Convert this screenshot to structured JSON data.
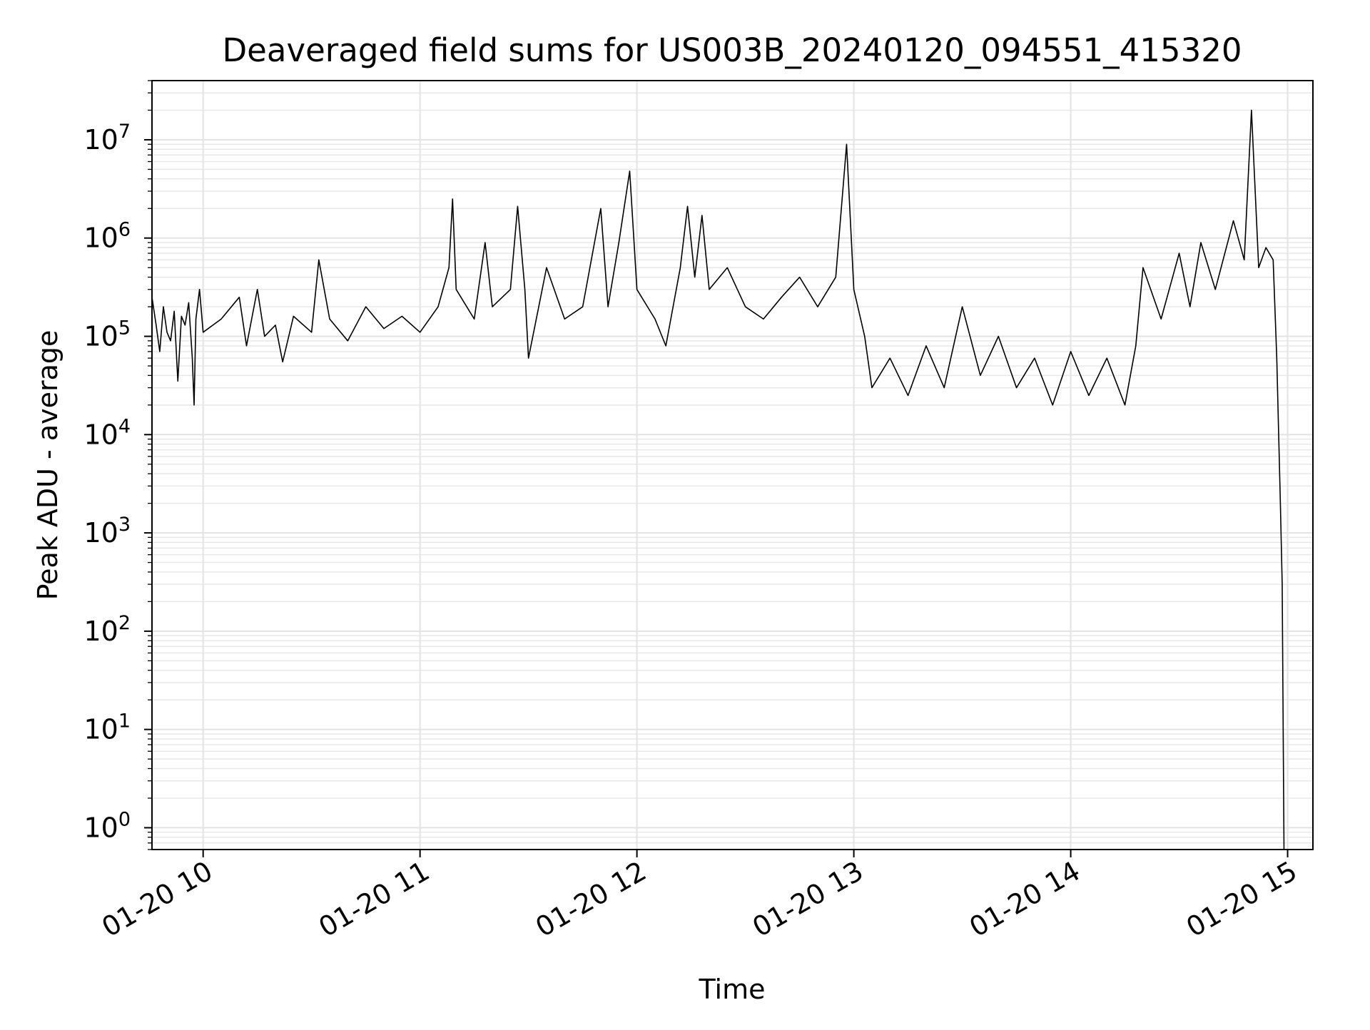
{
  "chart_data": {
    "type": "line",
    "title": "Deaveraged field sums for US003B_20240120_094551_415320",
    "xlabel": "Time",
    "ylabel": "Peak ADU - average",
    "yscale": "log",
    "ylim": [
      0.6,
      40000000
    ],
    "xlim": [
      "2024-01-20 09:45:51",
      "2024-01-20 15:07:00"
    ],
    "grid": true,
    "x_ticks": [
      {
        "value": "2024-01-20 10:00",
        "label": "01-20 10"
      },
      {
        "value": "2024-01-20 11:00",
        "label": "01-20 11"
      },
      {
        "value": "2024-01-20 12:00",
        "label": "01-20 12"
      },
      {
        "value": "2024-01-20 13:00",
        "label": "01-20 13"
      },
      {
        "value": "2024-01-20 14:00",
        "label": "01-20 14"
      },
      {
        "value": "2024-01-20 15:00",
        "label": "01-20 15"
      }
    ],
    "y_ticks": [
      {
        "value": 1,
        "base": "10",
        "exp": "0"
      },
      {
        "value": 10,
        "base": "10",
        "exp": "1"
      },
      {
        "value": 100,
        "base": "10",
        "exp": "2"
      },
      {
        "value": 1000,
        "base": "10",
        "exp": "3"
      },
      {
        "value": 10000,
        "base": "10",
        "exp": "4"
      },
      {
        "value": 100000,
        "base": "10",
        "exp": "5"
      },
      {
        "value": 1000000,
        "base": "10",
        "exp": "6"
      },
      {
        "value": 10000000,
        "base": "10",
        "exp": "7"
      }
    ],
    "series": [
      {
        "color": "#000000",
        "points": [
          [
            "2024-01-20 09:45:51",
            250000
          ],
          [
            "2024-01-20 09:47:00",
            130000
          ],
          [
            "2024-01-20 09:48:00",
            70000
          ],
          [
            "2024-01-20 09:49:00",
            200000
          ],
          [
            "2024-01-20 09:50:00",
            110000
          ],
          [
            "2024-01-20 09:51:00",
            90000
          ],
          [
            "2024-01-20 09:52:00",
            180000
          ],
          [
            "2024-01-20 09:53:00",
            35000
          ],
          [
            "2024-01-20 09:54:00",
            160000
          ],
          [
            "2024-01-20 09:55:00",
            130000
          ],
          [
            "2024-01-20 09:56:00",
            220000
          ],
          [
            "2024-01-20 09:57:00",
            60000
          ],
          [
            "2024-01-20 09:57:30",
            20000
          ],
          [
            "2024-01-20 09:58:00",
            150000
          ],
          [
            "2024-01-20 09:59:00",
            300000
          ],
          [
            "2024-01-20 10:00:00",
            110000
          ],
          [
            "2024-01-20 10:05:00",
            150000
          ],
          [
            "2024-01-20 10:10:00",
            250000
          ],
          [
            "2024-01-20 10:12:00",
            80000
          ],
          [
            "2024-01-20 10:15:00",
            300000
          ],
          [
            "2024-01-20 10:17:00",
            100000
          ],
          [
            "2024-01-20 10:20:00",
            130000
          ],
          [
            "2024-01-20 10:22:00",
            55000
          ],
          [
            "2024-01-20 10:25:00",
            160000
          ],
          [
            "2024-01-20 10:30:00",
            110000
          ],
          [
            "2024-01-20 10:32:00",
            600000
          ],
          [
            "2024-01-20 10:35:00",
            150000
          ],
          [
            "2024-01-20 10:40:00",
            90000
          ],
          [
            "2024-01-20 10:45:00",
            200000
          ],
          [
            "2024-01-20 10:50:00",
            120000
          ],
          [
            "2024-01-20 10:55:00",
            160000
          ],
          [
            "2024-01-20 11:00:00",
            110000
          ],
          [
            "2024-01-20 11:05:00",
            200000
          ],
          [
            "2024-01-20 11:08:00",
            500000
          ],
          [
            "2024-01-20 11:09:00",
            2500000
          ],
          [
            "2024-01-20 11:10:00",
            300000
          ],
          [
            "2024-01-20 11:15:00",
            150000
          ],
          [
            "2024-01-20 11:18:00",
            900000
          ],
          [
            "2024-01-20 11:20:00",
            200000
          ],
          [
            "2024-01-20 11:25:00",
            300000
          ],
          [
            "2024-01-20 11:27:00",
            2100000
          ],
          [
            "2024-01-20 11:29:00",
            300000
          ],
          [
            "2024-01-20 11:30:00",
            60000
          ],
          [
            "2024-01-20 11:35:00",
            500000
          ],
          [
            "2024-01-20 11:40:00",
            150000
          ],
          [
            "2024-01-20 11:45:00",
            200000
          ],
          [
            "2024-01-20 11:50:00",
            2000000
          ],
          [
            "2024-01-20 11:52:00",
            200000
          ],
          [
            "2024-01-20 11:55:00",
            900000
          ],
          [
            "2024-01-20 11:58:00",
            4800000
          ],
          [
            "2024-01-20 12:00:00",
            300000
          ],
          [
            "2024-01-20 12:05:00",
            150000
          ],
          [
            "2024-01-20 12:08:00",
            80000
          ],
          [
            "2024-01-20 12:12:00",
            500000
          ],
          [
            "2024-01-20 12:14:00",
            2100000
          ],
          [
            "2024-01-20 12:16:00",
            400000
          ],
          [
            "2024-01-20 12:18:00",
            1700000
          ],
          [
            "2024-01-20 12:20:00",
            300000
          ],
          [
            "2024-01-20 12:25:00",
            500000
          ],
          [
            "2024-01-20 12:30:00",
            200000
          ],
          [
            "2024-01-20 12:35:00",
            150000
          ],
          [
            "2024-01-20 12:40:00",
            250000
          ],
          [
            "2024-01-20 12:45:00",
            400000
          ],
          [
            "2024-01-20 12:50:00",
            200000
          ],
          [
            "2024-01-20 12:55:00",
            400000
          ],
          [
            "2024-01-20 12:58:00",
            9000000
          ],
          [
            "2024-01-20 13:00:00",
            300000
          ],
          [
            "2024-01-20 13:03:00",
            100000
          ],
          [
            "2024-01-20 13:05:00",
            30000
          ],
          [
            "2024-01-20 13:10:00",
            60000
          ],
          [
            "2024-01-20 13:15:00",
            25000
          ],
          [
            "2024-01-20 13:20:00",
            80000
          ],
          [
            "2024-01-20 13:25:00",
            30000
          ],
          [
            "2024-01-20 13:30:00",
            200000
          ],
          [
            "2024-01-20 13:35:00",
            40000
          ],
          [
            "2024-01-20 13:40:00",
            100000
          ],
          [
            "2024-01-20 13:45:00",
            30000
          ],
          [
            "2024-01-20 13:50:00",
            60000
          ],
          [
            "2024-01-20 13:55:00",
            20000
          ],
          [
            "2024-01-20 14:00:00",
            70000
          ],
          [
            "2024-01-20 14:05:00",
            25000
          ],
          [
            "2024-01-20 14:10:00",
            60000
          ],
          [
            "2024-01-20 14:15:00",
            20000
          ],
          [
            "2024-01-20 14:18:00",
            80000
          ],
          [
            "2024-01-20 14:20:00",
            500000
          ],
          [
            "2024-01-20 14:25:00",
            150000
          ],
          [
            "2024-01-20 14:30:00",
            700000
          ],
          [
            "2024-01-20 14:33:00",
            200000
          ],
          [
            "2024-01-20 14:36:00",
            900000
          ],
          [
            "2024-01-20 14:40:00",
            300000
          ],
          [
            "2024-01-20 14:45:00",
            1500000
          ],
          [
            "2024-01-20 14:48:00",
            600000
          ],
          [
            "2024-01-20 14:50:00",
            20000000
          ],
          [
            "2024-01-20 14:52:00",
            500000
          ],
          [
            "2024-01-20 14:54:00",
            800000
          ],
          [
            "2024-01-20 14:56:00",
            600000
          ],
          [
            "2024-01-20 14:57:00",
            60000
          ],
          [
            "2024-01-20 14:58:00",
            2000
          ],
          [
            "2024-01-20 14:58:30",
            300
          ],
          [
            "2024-01-20 14:59:00",
            0.6
          ]
        ]
      }
    ]
  }
}
